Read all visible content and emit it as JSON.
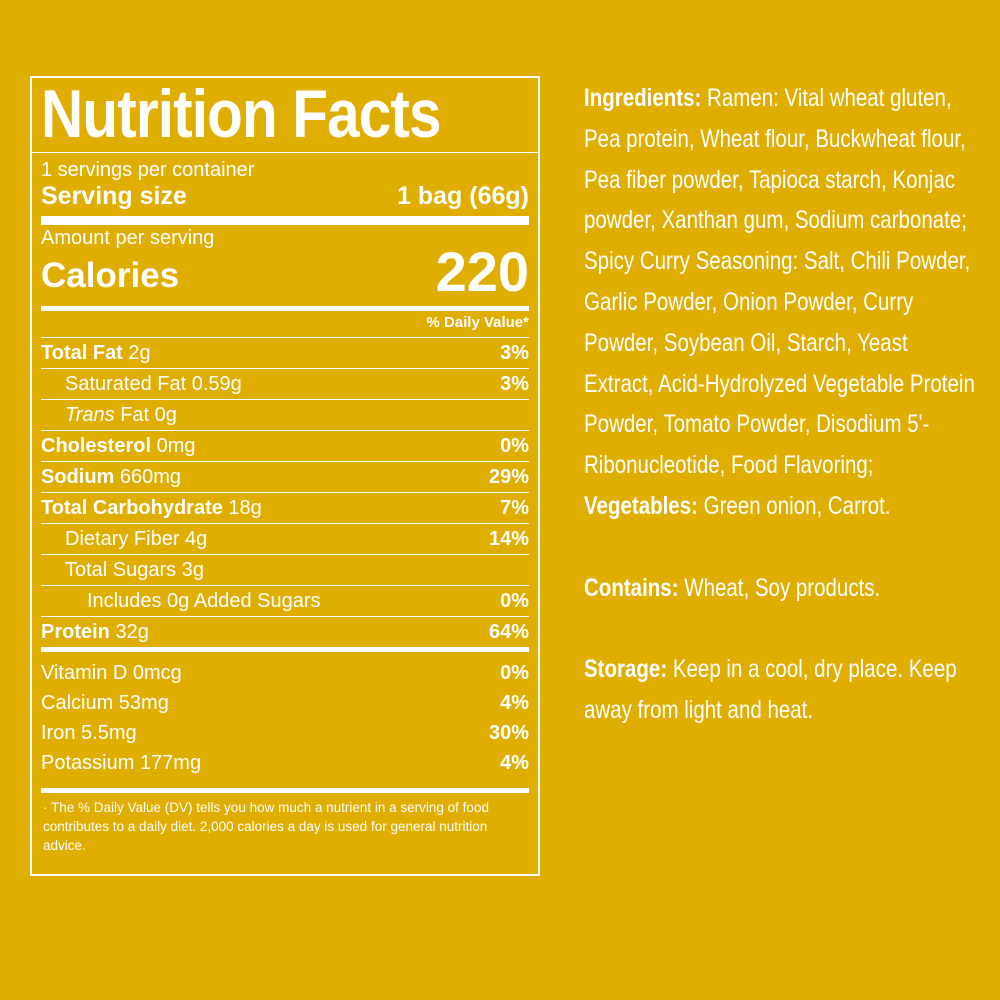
{
  "label": {
    "title": "Nutrition Facts",
    "servings_per_container": "1 servings per container",
    "serving_size_label": "Serving size",
    "serving_size_value": "1 bag (66g)",
    "amount_per_serving": "Amount per serving",
    "calories_label": "Calories",
    "calories_value": "220",
    "dv_header": "% Daily Value*",
    "nutrients": [
      {
        "bold": "Total Fat",
        "name": " 2g",
        "dv": "3%"
      },
      {
        "bold": "",
        "name": "Saturated Fat 0.59g",
        "dv": "3%"
      },
      {
        "italic": "Trans",
        "name": " Fat 0g",
        "dv": ""
      },
      {
        "bold": "Cholesterol",
        "name": " 0mg",
        "dv": "0%"
      },
      {
        "bold": "Sodium",
        "name": " 660mg",
        "dv": "29%"
      },
      {
        "bold": "Total Carbohydrate",
        "name": " 18g",
        "dv": "7%"
      },
      {
        "bold": "",
        "name": "Dietary Fiber 4g",
        "dv": "14%"
      },
      {
        "bold": "",
        "name": "Total Sugars 3g",
        "dv": ""
      },
      {
        "bold": "",
        "name": "Includes 0g Added Sugars",
        "dv": "0%"
      },
      {
        "bold": "Protein",
        "name": " 32g",
        "dv": "64%"
      }
    ],
    "vitamins": [
      {
        "name": "Vitamin D 0mcg",
        "dv": "0%"
      },
      {
        "name": "Calcium 53mg",
        "dv": "4%"
      },
      {
        "name": "Iron 5.5mg",
        "dv": "30%"
      },
      {
        "name": "Potassium 177mg",
        "dv": "4%"
      }
    ],
    "footnote": "· The % Daily Value (DV) tells you how much a nutrient in a serving of food contributes to a daily diet. 2,000 calories a day is used for general nutrition advice."
  },
  "ingredients": {
    "heading": "Ingredients:",
    "text": " Ramen: Vital wheat gluten, Pea protein, Wheat flour, Buckwheat flour, Pea fiber powder, Tapioca starch, Konjac powder, Xanthan gum, Sodium carbonate; Spicy Curry Seasoning: Salt, Chili Powder, Garlic Powder, Onion Powder, Curry Powder, Soybean Oil, Starch, Yeast Extract, Acid-Hydrolyzed Vegetable Protein Powder, Tomato Powder, Disodium 5'-Ribonucleotide, Food Flavoring;",
    "veg_heading": "Vegetables:",
    "veg_text": " Green onion, Carrot.",
    "contains_heading": "Contains:",
    "contains_text": " Wheat, Soy products.",
    "storage_heading": "Storage:",
    "storage_text": " Keep in a cool, dry place. Keep away from light and heat."
  }
}
